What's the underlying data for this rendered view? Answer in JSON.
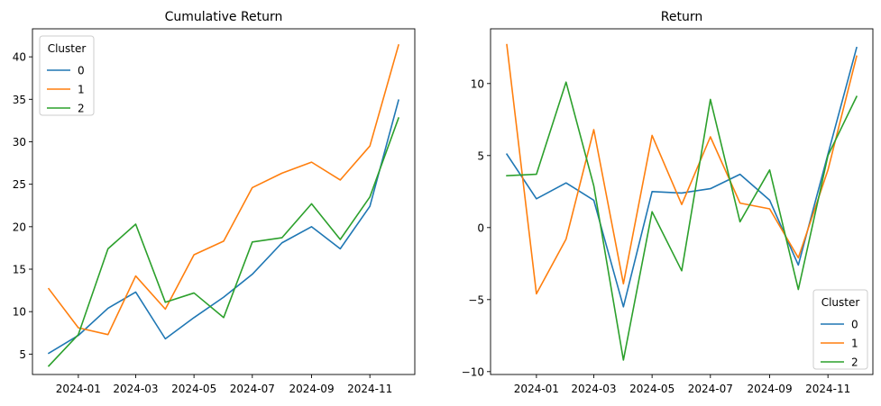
{
  "chart_data": [
    {
      "type": "line",
      "title": "Cumulative Return",
      "xlabel": "",
      "ylabel": "",
      "x": [
        "2023-12-01",
        "2024-01-01",
        "2024-02-01",
        "2024-03-01",
        "2024-04-01",
        "2024-05-01",
        "2024-06-01",
        "2024-07-01",
        "2024-08-01",
        "2024-09-01",
        "2024-10-01",
        "2024-11-01",
        "2024-12-01"
      ],
      "xticks": [
        "2024-01",
        "2024-03",
        "2024-05",
        "2024-07",
        "2024-09",
        "2024-11"
      ],
      "yticks": [
        5,
        10,
        15,
        20,
        25,
        30,
        35,
        40
      ],
      "ylim": [
        2.6,
        43.3
      ],
      "grid": false,
      "legend": {
        "title": "Cluster",
        "placement": "top-left"
      },
      "series": [
        {
          "name": "0",
          "color": "#1f77b4",
          "values": [
            5.1,
            7.2,
            10.4,
            12.3,
            6.8,
            9.3,
            11.7,
            14.4,
            18.1,
            20.0,
            17.4,
            22.4,
            34.9
          ]
        },
        {
          "name": "1",
          "color": "#ff7f0e",
          "values": [
            12.7,
            8.1,
            7.3,
            14.2,
            10.3,
            16.7,
            18.3,
            24.6,
            26.3,
            27.6,
            25.5,
            29.5,
            41.4
          ]
        },
        {
          "name": "2",
          "color": "#2ca02c",
          "values": [
            3.6,
            7.3,
            17.4,
            20.3,
            11.1,
            12.2,
            9.3,
            18.2,
            18.7,
            22.7,
            18.5,
            23.5,
            32.8
          ]
        }
      ]
    },
    {
      "type": "line",
      "title": "Return",
      "xlabel": "",
      "ylabel": "",
      "x": [
        "2023-12-01",
        "2024-01-01",
        "2024-02-01",
        "2024-03-01",
        "2024-04-01",
        "2024-05-01",
        "2024-06-01",
        "2024-07-01",
        "2024-08-01",
        "2024-09-01",
        "2024-10-01",
        "2024-11-01",
        "2024-12-01"
      ],
      "xticks": [
        "2024-01",
        "2024-03",
        "2024-05",
        "2024-07",
        "2024-09",
        "2024-11"
      ],
      "yticks": [
        -10,
        -5,
        0,
        5,
        10
      ],
      "ylim": [
        -10.2,
        13.8
      ],
      "grid": false,
      "legend": {
        "title": "Cluster",
        "placement": "bottom-right"
      },
      "series": [
        {
          "name": "0",
          "color": "#1f77b4",
          "values": [
            5.1,
            2.0,
            3.1,
            1.9,
            -5.5,
            2.5,
            2.4,
            2.7,
            3.7,
            1.9,
            -2.6,
            5.1,
            12.5
          ]
        },
        {
          "name": "1",
          "color": "#ff7f0e",
          "values": [
            12.7,
            -4.6,
            -0.8,
            6.8,
            -3.9,
            6.4,
            1.6,
            6.3,
            1.7,
            1.3,
            -2.1,
            4.0,
            11.9
          ]
        },
        {
          "name": "2",
          "color": "#2ca02c",
          "values": [
            3.6,
            3.7,
            10.1,
            2.9,
            -9.2,
            1.1,
            -3.0,
            8.9,
            0.4,
            4.0,
            -4.3,
            5.0,
            9.1
          ]
        }
      ]
    }
  ]
}
